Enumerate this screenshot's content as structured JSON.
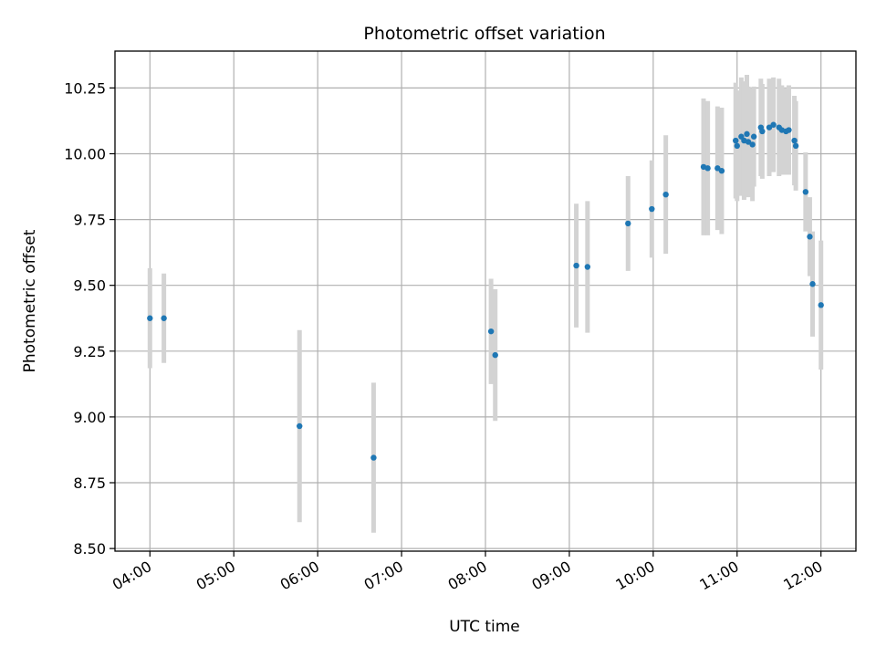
{
  "chart_data": {
    "type": "scatter",
    "title": "Photometric offset variation",
    "xlabel": "UTC time",
    "ylabel": "Photometric offset",
    "x_unit": "UTC time (HH:MM)",
    "xlim": [
      "03:35",
      "12:25"
    ],
    "ylim": [
      8.49,
      10.39
    ],
    "x_ticks": [
      "04:00",
      "05:00",
      "06:00",
      "07:00",
      "08:00",
      "09:00",
      "10:00",
      "11:00",
      "12:00"
    ],
    "y_ticks": [
      "8.50",
      "8.75",
      "9.00",
      "9.25",
      "9.50",
      "9.75",
      "10.00",
      "10.25"
    ],
    "grid": true,
    "marker_color": "#1f77b4",
    "errorbar_color": "#d3d3d3",
    "points": [
      {
        "x": "04:00",
        "y": 9.375,
        "err": 0.19
      },
      {
        "x": "04:10",
        "y": 9.375,
        "err": 0.17
      },
      {
        "x": "05:47",
        "y": 8.965,
        "err": 0.365
      },
      {
        "x": "06:40",
        "y": 8.845,
        "err": 0.285
      },
      {
        "x": "08:04",
        "y": 9.325,
        "err": 0.2
      },
      {
        "x": "08:07",
        "y": 9.235,
        "err": 0.25
      },
      {
        "x": "09:05",
        "y": 9.575,
        "err": 0.235
      },
      {
        "x": "09:13",
        "y": 9.57,
        "err": 0.25
      },
      {
        "x": "09:42",
        "y": 9.735,
        "err": 0.18
      },
      {
        "x": "09:59",
        "y": 9.79,
        "err": 0.185
      },
      {
        "x": "10:09",
        "y": 9.845,
        "err": 0.225
      },
      {
        "x": "10:36",
        "y": 9.95,
        "err": 0.26
      },
      {
        "x": "10:39",
        "y": 9.945,
        "err": 0.255
      },
      {
        "x": "10:46",
        "y": 9.945,
        "err": 0.235
      },
      {
        "x": "10:49",
        "y": 9.935,
        "err": 0.24
      },
      {
        "x": "10:59",
        "y": 10.05,
        "err": 0.22
      },
      {
        "x": "11:00",
        "y": 10.03,
        "err": 0.21
      },
      {
        "x": "11:03",
        "y": 10.065,
        "err": 0.225
      },
      {
        "x": "11:05",
        "y": 10.05,
        "err": 0.225
      },
      {
        "x": "11:07",
        "y": 10.075,
        "err": 0.225
      },
      {
        "x": "11:08",
        "y": 10.045,
        "err": 0.21
      },
      {
        "x": "11:11",
        "y": 10.035,
        "err": 0.215
      },
      {
        "x": "11:12",
        "y": 10.065,
        "err": 0.19
      },
      {
        "x": "11:17",
        "y": 10.1,
        "err": 0.185
      },
      {
        "x": "11:18",
        "y": 10.085,
        "err": 0.18
      },
      {
        "x": "11:23",
        "y": 10.1,
        "err": 0.185
      },
      {
        "x": "11:26",
        "y": 10.11,
        "err": 0.18
      },
      {
        "x": "11:30",
        "y": 10.1,
        "err": 0.185
      },
      {
        "x": "11:32",
        "y": 10.09,
        "err": 0.17
      },
      {
        "x": "11:35",
        "y": 10.085,
        "err": 0.165
      },
      {
        "x": "11:37",
        "y": 10.09,
        "err": 0.17
      },
      {
        "x": "11:41",
        "y": 10.05,
        "err": 0.17
      },
      {
        "x": "11:42",
        "y": 10.03,
        "err": 0.17
      },
      {
        "x": "11:49",
        "y": 9.855,
        "err": 0.15
      },
      {
        "x": "11:52",
        "y": 9.685,
        "err": 0.15
      },
      {
        "x": "11:54",
        "y": 9.505,
        "err": 0.2
      },
      {
        "x": "12:00",
        "y": 9.425,
        "err": 0.245
      }
    ]
  }
}
